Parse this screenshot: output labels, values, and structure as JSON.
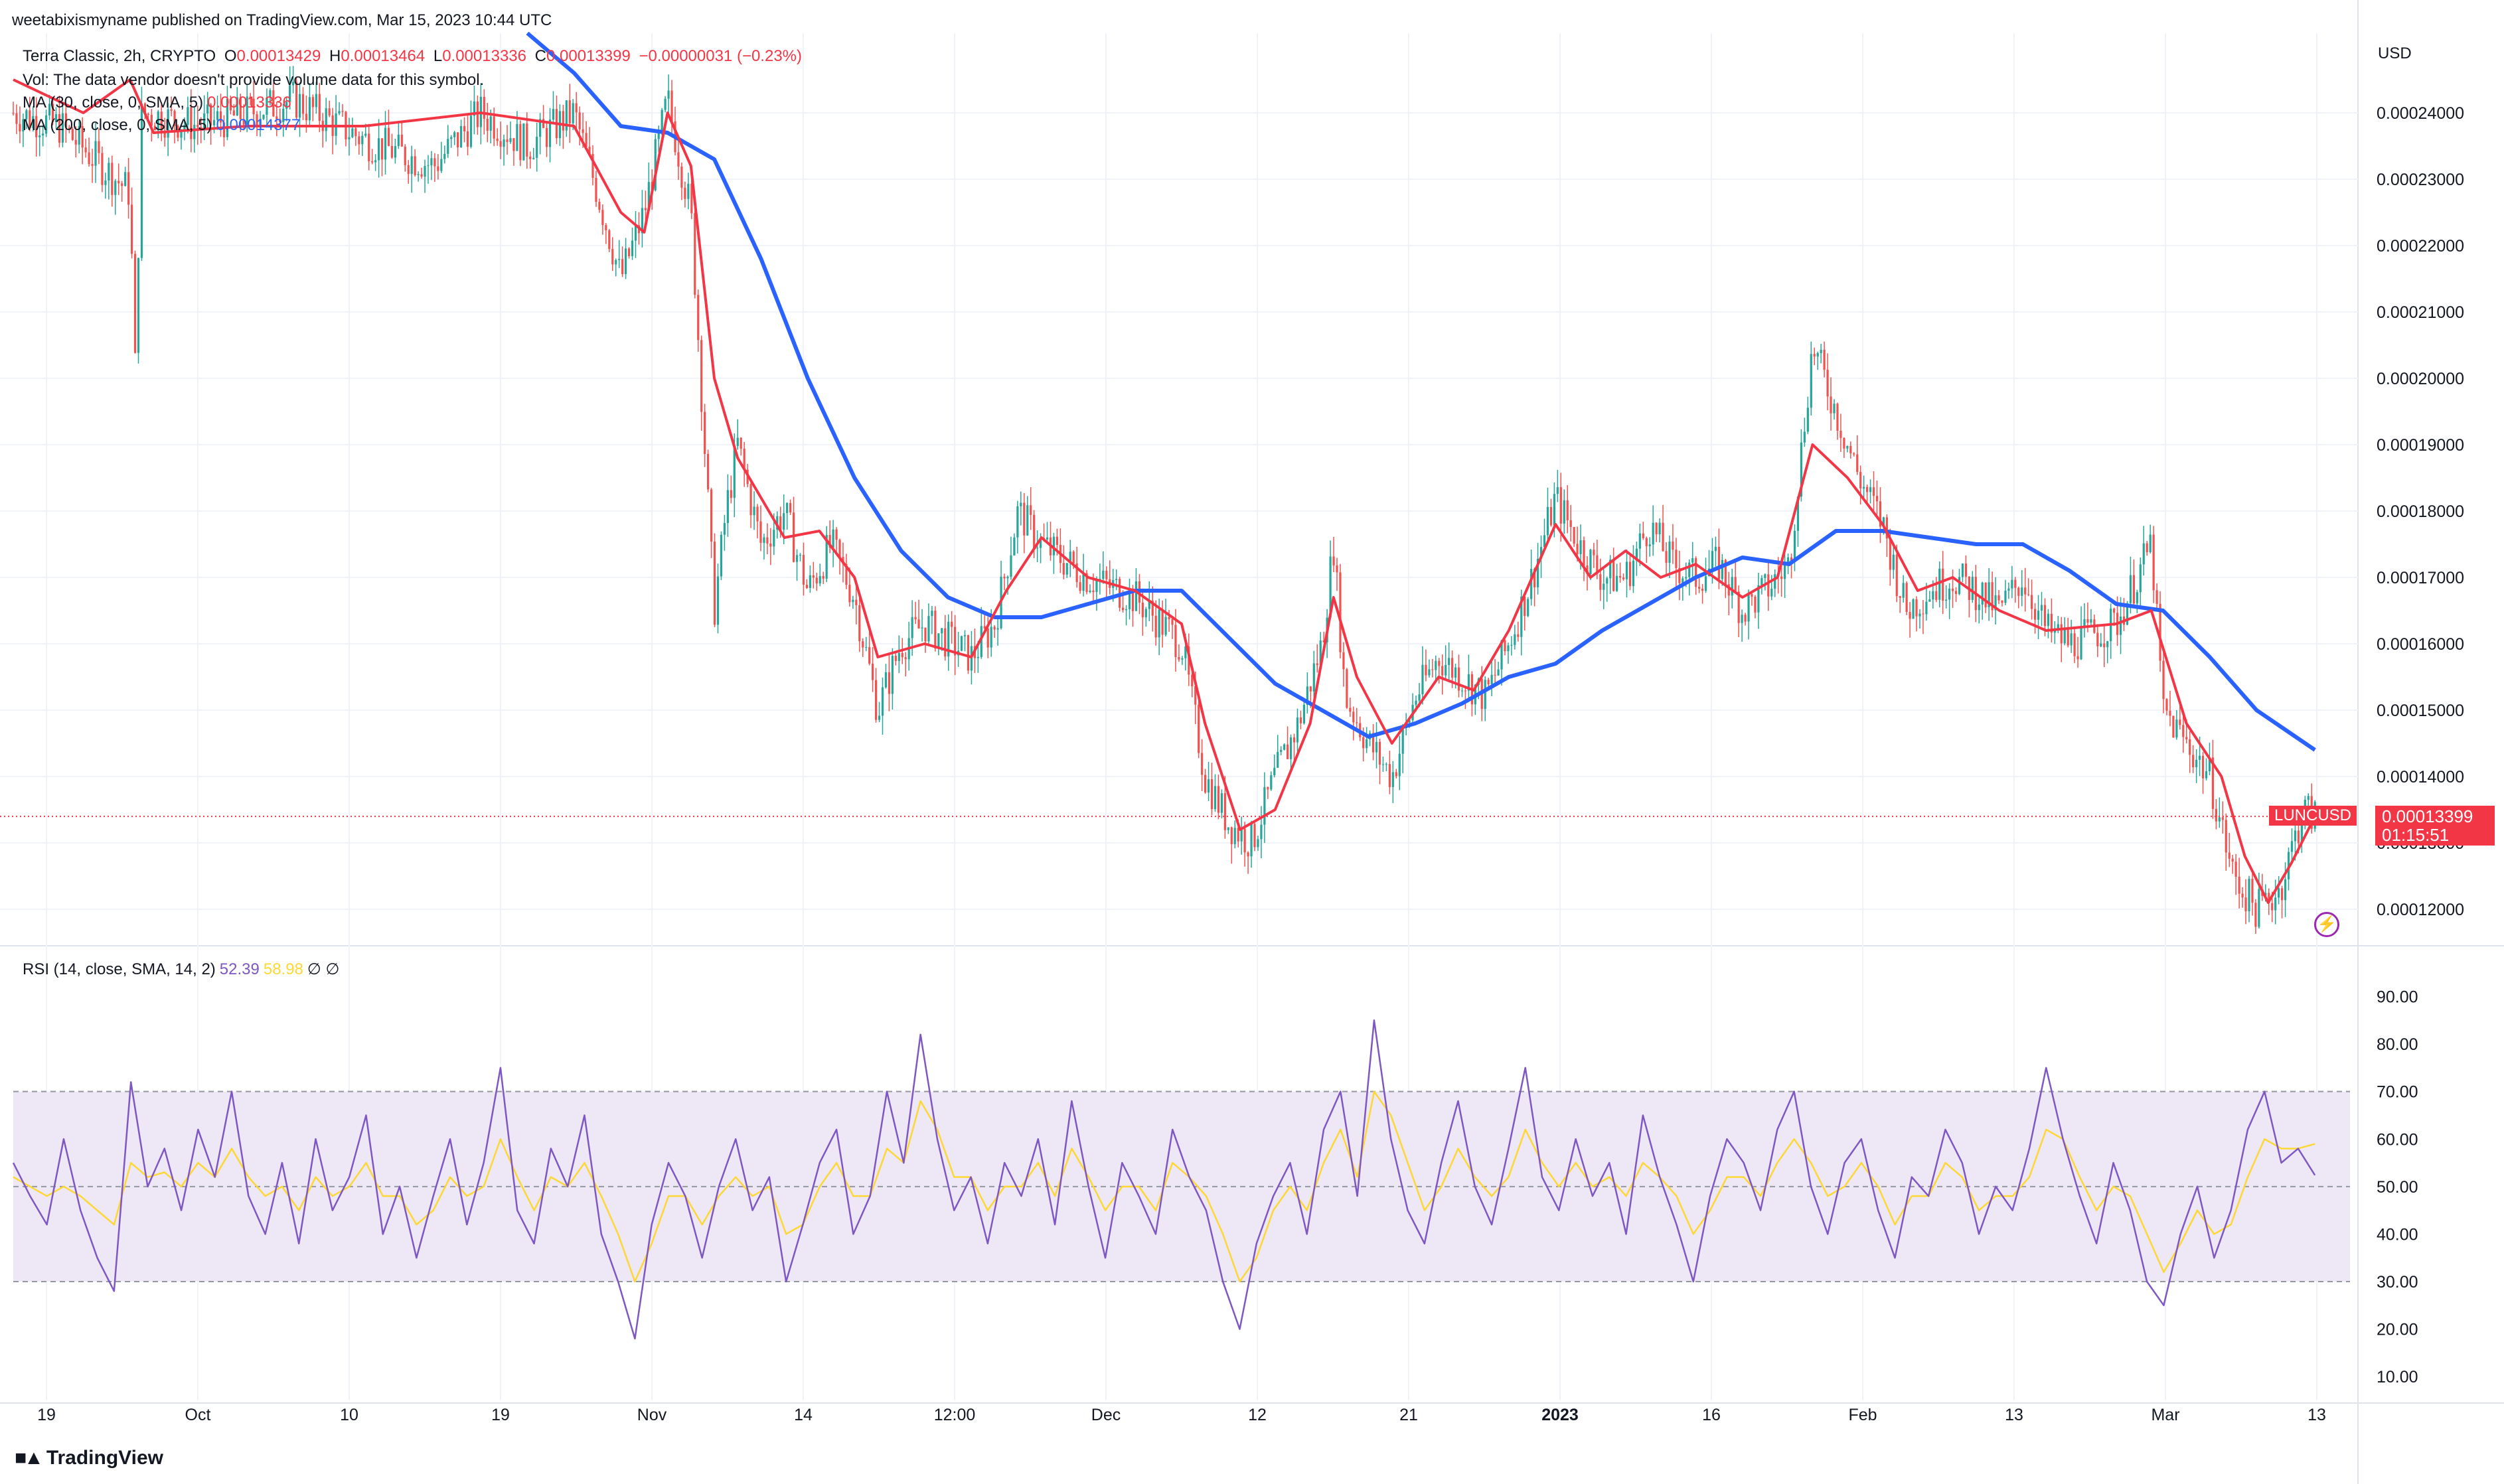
{
  "publisher_line": "weetabixismyname published on TradingView.com, Mar 15, 2023 10:44 UTC",
  "legend": {
    "symbol": "Terra Classic, 2h, CRYPTO",
    "ohlc": {
      "o_label": "O",
      "o": "0.00013429",
      "h_label": "H",
      "h": "0.00013464",
      "l_label": "L",
      "l": "0.00013336",
      "c_label": "C",
      "c": "0.00013399",
      "change": "−0.00000031 (−0.23%)"
    },
    "vol": "Vol: The data vendor doesn't provide volume data for this symbol.",
    "ma30_label": "MA (30, close, 0, SMA, 5)",
    "ma30_value": "0.00013336",
    "ma200_label": "MA (200, close, 0, SMA, 5)",
    "ma200_value": "0.00014377",
    "rsi_label": "RSI (14, close, SMA, 14, 2)",
    "rsi_value": "52.39",
    "rsi_ma_value": "58.98",
    "rsi_extra": "∅  ∅"
  },
  "currency": "USD",
  "last_price": {
    "symbol": "LUNCUSD",
    "value": "0.00013399",
    "countdown": "01:15:51"
  },
  "brand": "TradingView",
  "colors": {
    "up": "#26a69a",
    "down": "#ef5350",
    "ma30": "#f23645",
    "ma200": "#2962ff",
    "rsi": "#7e57c2",
    "rsi_ma": "#fdd835",
    "rsi_band": "#ede7f6",
    "grid": "#f0f3fa",
    "text": "#131722"
  },
  "chart_data": [
    {
      "type": "candlestick",
      "title": "Terra Classic, 2h, CRYPTO",
      "ylabel": "USD",
      "ylim": [
        0.000115,
        0.000252
      ],
      "x_ticks": [
        "19",
        "Oct",
        "10",
        "19",
        "Nov",
        "14",
        "12:00",
        "Dec",
        "12",
        "21",
        "2023",
        "16",
        "Feb",
        "13",
        "Mar",
        "13"
      ],
      "y_ticks": [
        "0.00012000",
        "0.00013000",
        "0.00014000",
        "0.00015000",
        "0.00016000",
        "0.00017000",
        "0.00018000",
        "0.00019000",
        "0.00020000",
        "0.00021000",
        "0.00022000",
        "0.00023000",
        "0.00024000"
      ],
      "close_path": [
        [
          0,
          0.00024
        ],
        [
          0.02,
          0.000238
        ],
        [
          0.05,
          0.000228
        ],
        [
          0.052,
          0.0002
        ],
        [
          0.055,
          0.00024
        ],
        [
          0.08,
          0.000238
        ],
        [
          0.12,
          0.000242
        ],
        [
          0.15,
          0.000236
        ],
        [
          0.18,
          0.000232
        ],
        [
          0.2,
          0.00024
        ],
        [
          0.22,
          0.000235
        ],
        [
          0.24,
          0.00024
        ],
        [
          0.25,
          0.000228
        ],
        [
          0.26,
          0.000215
        ],
        [
          0.27,
          0.000225
        ],
        [
          0.28,
          0.000242
        ],
        [
          0.29,
          0.000225
        ],
        [
          0.295,
          0.000195
        ],
        [
          0.3,
          0.000165
        ],
        [
          0.305,
          0.00018
        ],
        [
          0.31,
          0.00019
        ],
        [
          0.32,
          0.000175
        ],
        [
          0.33,
          0.00018
        ],
        [
          0.34,
          0.000168
        ],
        [
          0.35,
          0.000175
        ],
        [
          0.36,
          0.000167
        ],
        [
          0.37,
          0.00015
        ],
        [
          0.38,
          0.00016
        ],
        [
          0.39,
          0.000163
        ],
        [
          0.41,
          0.000158
        ],
        [
          0.42,
          0.000163
        ],
        [
          0.43,
          0.00018
        ],
        [
          0.44,
          0.000175
        ],
        [
          0.46,
          0.00017
        ],
        [
          0.48,
          0.000167
        ],
        [
          0.5,
          0.00016
        ],
        [
          0.51,
          0.00014
        ],
        [
          0.52,
          0.000133
        ],
        [
          0.53,
          0.00013
        ],
        [
          0.54,
          0.00014
        ],
        [
          0.55,
          0.000148
        ],
        [
          0.56,
          0.00016
        ],
        [
          0.565,
          0.000175
        ],
        [
          0.57,
          0.000152
        ],
        [
          0.58,
          0.000145
        ],
        [
          0.59,
          0.00014
        ],
        [
          0.6,
          0.000152
        ],
        [
          0.61,
          0.000158
        ],
        [
          0.62,
          0.000155
        ],
        [
          0.63,
          0.000152
        ],
        [
          0.64,
          0.00016
        ],
        [
          0.65,
          0.00017
        ],
        [
          0.66,
          0.000182
        ],
        [
          0.67,
          0.000175
        ],
        [
          0.68,
          0.00017
        ],
        [
          0.69,
          0.00017
        ],
        [
          0.7,
          0.000178
        ],
        [
          0.71,
          0.000172
        ],
        [
          0.72,
          0.00017
        ],
        [
          0.73,
          0.000172
        ],
        [
          0.74,
          0.000165
        ],
        [
          0.75,
          0.000168
        ],
        [
          0.76,
          0.000172
        ],
        [
          0.77,
          0.000205
        ],
        [
          0.78,
          0.000195
        ],
        [
          0.79,
          0.000185
        ],
        [
          0.8,
          0.000178
        ],
        [
          0.81,
          0.000165
        ],
        [
          0.82,
          0.000168
        ],
        [
          0.83,
          0.00017
        ],
        [
          0.84,
          0.000168
        ],
        [
          0.85,
          0.000165
        ],
        [
          0.86,
          0.00017
        ],
        [
          0.87,
          0.000162
        ],
        [
          0.88,
          0.00016
        ],
        [
          0.9,
          0.000163
        ],
        [
          0.915,
          0.000175
        ],
        [
          0.92,
          0.00015
        ],
        [
          0.93,
          0.000145
        ],
        [
          0.94,
          0.00014
        ],
        [
          0.95,
          0.000125
        ],
        [
          0.96,
          0.00012
        ],
        [
          0.97,
          0.000123
        ],
        [
          0.98,
          0.000135
        ],
        [
          0.985,
          0.000134
        ]
      ],
      "ma30_path": [
        [
          0.0,
          0.000245
        ],
        [
          0.03,
          0.00024
        ],
        [
          0.05,
          0.000245
        ],
        [
          0.06,
          0.000237
        ],
        [
          0.1,
          0.000238
        ],
        [
          0.15,
          0.000238
        ],
        [
          0.2,
          0.00024
        ],
        [
          0.24,
          0.000238
        ],
        [
          0.26,
          0.000225
        ],
        [
          0.27,
          0.000222
        ],
        [
          0.28,
          0.00024
        ],
        [
          0.29,
          0.000232
        ],
        [
          0.3,
          0.0002
        ],
        [
          0.31,
          0.000188
        ],
        [
          0.32,
          0.000182
        ],
        [
          0.33,
          0.000176
        ],
        [
          0.345,
          0.000177
        ],
        [
          0.36,
          0.00017
        ],
        [
          0.37,
          0.000158
        ],
        [
          0.39,
          0.00016
        ],
        [
          0.41,
          0.000158
        ],
        [
          0.425,
          0.000168
        ],
        [
          0.44,
          0.000176
        ],
        [
          0.46,
          0.00017
        ],
        [
          0.48,
          0.000168
        ],
        [
          0.5,
          0.000163
        ],
        [
          0.51,
          0.000148
        ],
        [
          0.525,
          0.000132
        ],
        [
          0.54,
          0.000135
        ],
        [
          0.555,
          0.000148
        ],
        [
          0.565,
          0.000167
        ],
        [
          0.575,
          0.000155
        ],
        [
          0.59,
          0.000145
        ],
        [
          0.61,
          0.000155
        ],
        [
          0.625,
          0.000153
        ],
        [
          0.64,
          0.000162
        ],
        [
          0.66,
          0.000178
        ],
        [
          0.675,
          0.00017
        ],
        [
          0.69,
          0.000174
        ],
        [
          0.705,
          0.00017
        ],
        [
          0.72,
          0.000172
        ],
        [
          0.74,
          0.000167
        ],
        [
          0.755,
          0.00017
        ],
        [
          0.77,
          0.00019
        ],
        [
          0.785,
          0.000185
        ],
        [
          0.8,
          0.000178
        ],
        [
          0.815,
          0.000168
        ],
        [
          0.83,
          0.00017
        ],
        [
          0.85,
          0.000165
        ],
        [
          0.87,
          0.000162
        ],
        [
          0.9,
          0.000163
        ],
        [
          0.915,
          0.000165
        ],
        [
          0.93,
          0.000148
        ],
        [
          0.945,
          0.00014
        ],
        [
          0.955,
          0.000128
        ],
        [
          0.965,
          0.000121
        ],
        [
          0.975,
          0.000127
        ],
        [
          0.985,
          0.000134
        ]
      ],
      "ma200_path": [
        [
          0.22,
          0.000252
        ],
        [
          0.24,
          0.000246
        ],
        [
          0.26,
          0.000238
        ],
        [
          0.28,
          0.000237
        ],
        [
          0.3,
          0.000233
        ],
        [
          0.32,
          0.000218
        ],
        [
          0.34,
          0.0002
        ],
        [
          0.36,
          0.000185
        ],
        [
          0.38,
          0.000174
        ],
        [
          0.4,
          0.000167
        ],
        [
          0.42,
          0.000164
        ],
        [
          0.44,
          0.000164
        ],
        [
          0.46,
          0.000166
        ],
        [
          0.48,
          0.000168
        ],
        [
          0.5,
          0.000168
        ],
        [
          0.52,
          0.000161
        ],
        [
          0.54,
          0.000154
        ],
        [
          0.56,
          0.00015
        ],
        [
          0.58,
          0.000146
        ],
        [
          0.6,
          0.000148
        ],
        [
          0.62,
          0.000151
        ],
        [
          0.64,
          0.000155
        ],
        [
          0.66,
          0.000157
        ],
        [
          0.68,
          0.000162
        ],
        [
          0.7,
          0.000166
        ],
        [
          0.72,
          0.00017
        ],
        [
          0.74,
          0.000173
        ],
        [
          0.76,
          0.000172
        ],
        [
          0.78,
          0.000177
        ],
        [
          0.8,
          0.000177
        ],
        [
          0.82,
          0.000176
        ],
        [
          0.84,
          0.000175
        ],
        [
          0.86,
          0.000175
        ],
        [
          0.88,
          0.000171
        ],
        [
          0.9,
          0.000166
        ],
        [
          0.92,
          0.000165
        ],
        [
          0.94,
          0.000158
        ],
        [
          0.96,
          0.00015
        ],
        [
          0.985,
          0.000144
        ]
      ],
      "last_value": 0.00013399
    },
    {
      "type": "line",
      "title": "RSI (14, close, SMA, 14, 2)",
      "ylim": [
        5,
        93
      ],
      "y_ticks": [
        "10.00",
        "20.00",
        "30.00",
        "40.00",
        "50.00",
        "60.00",
        "70.00",
        "80.00",
        "90.00"
      ],
      "band": [
        30,
        70
      ],
      "midline": 50,
      "series": [
        {
          "name": "RSI",
          "values": [
            55,
            48,
            42,
            60,
            45,
            35,
            28,
            72,
            50,
            58,
            45,
            62,
            52,
            70,
            48,
            40,
            55,
            38,
            60,
            45,
            52,
            65,
            40,
            50,
            35,
            48,
            60,
            42,
            55,
            75,
            45,
            38,
            58,
            50,
            65,
            40,
            30,
            18,
            42,
            55,
            48,
            35,
            50,
            60,
            45,
            52,
            30,
            42,
            55,
            62,
            40,
            48,
            70,
            55,
            82,
            60,
            45,
            52,
            38,
            55,
            48,
            60,
            42,
            68,
            50,
            35,
            55,
            48,
            40,
            62,
            52,
            45,
            30,
            20,
            38,
            48,
            55,
            40,
            62,
            70,
            48,
            85,
            60,
            45,
            38,
            55,
            68,
            50,
            42,
            58,
            75,
            52,
            45,
            60,
            48,
            55,
            40,
            65,
            52,
            42,
            30,
            48,
            60,
            55,
            45,
            62,
            70,
            50,
            40,
            55,
            60,
            45,
            35,
            52,
            48,
            62,
            55,
            40,
            50,
            45,
            58,
            75,
            60,
            48,
            38,
            55,
            45,
            30,
            25,
            40,
            50,
            35,
            45,
            62,
            70,
            55,
            58,
            52.39
          ]
        },
        {
          "name": "RSI-based MA",
          "values": [
            52,
            50,
            48,
            50,
            48,
            45,
            42,
            55,
            52,
            53,
            50,
            55,
            52,
            58,
            52,
            48,
            50,
            45,
            52,
            48,
            50,
            55,
            48,
            48,
            42,
            45,
            52,
            48,
            50,
            60,
            52,
            45,
            52,
            50,
            55,
            48,
            40,
            30,
            38,
            48,
            48,
            42,
            48,
            52,
            48,
            50,
            40,
            42,
            50,
            55,
            48,
            48,
            58,
            55,
            68,
            62,
            52,
            52,
            45,
            50,
            50,
            55,
            48,
            58,
            52,
            45,
            50,
            50,
            45,
            55,
            52,
            48,
            40,
            30,
            35,
            45,
            50,
            45,
            55,
            62,
            52,
            70,
            65,
            55,
            45,
            50,
            58,
            52,
            48,
            52,
            62,
            55,
            50,
            55,
            50,
            52,
            48,
            55,
            52,
            48,
            40,
            45,
            52,
            52,
            48,
            55,
            60,
            55,
            48,
            50,
            55,
            50,
            42,
            48,
            48,
            55,
            52,
            45,
            48,
            48,
            52,
            62,
            60,
            52,
            45,
            50,
            48,
            40,
            32,
            38,
            45,
            40,
            42,
            52,
            60,
            58,
            58,
            58.98
          ]
        }
      ]
    }
  ]
}
